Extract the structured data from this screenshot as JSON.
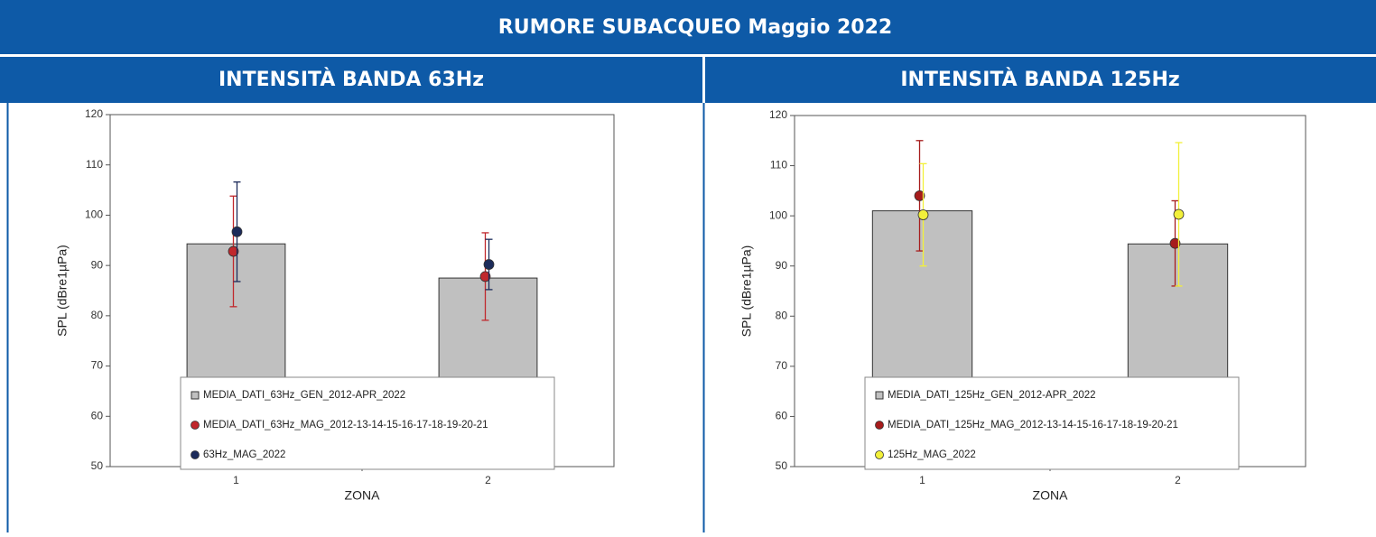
{
  "title": "RUMORE SUBACQUEO  Maggio 2022",
  "chart_data": [
    {
      "type": "bar",
      "title": "INTENSITÀ BANDA 63Hz",
      "x_label": "ZONA",
      "y_label": "SPL (dBre1µPa)",
      "categories": [
        "1",
        "2"
      ],
      "ylim": [
        50,
        120
      ],
      "yticks": [
        50,
        60,
        70,
        80,
        90,
        100,
        110,
        120
      ],
      "series": [
        {
          "name": "MEDIA_DATI_63Hz_GEN_2012-APR_2022",
          "type": "bar",
          "color": "#c0c0c0",
          "values": [
            94.3,
            87.5
          ]
        },
        {
          "name": "MEDIA_DATI_63Hz_MAG_2012-13-14-15-16-17-18-19-20-21",
          "type": "point",
          "color": "#c0282d",
          "values": [
            92.8,
            87.8
          ],
          "errors": [
            11,
            8.7
          ]
        },
        {
          "name": "63Hz_MAG_2022",
          "type": "point",
          "color": "#1c2b5a",
          "values": [
            96.7,
            90.2
          ],
          "errors": [
            9.9,
            5
          ]
        }
      ]
    },
    {
      "type": "bar",
      "title": "INTENSITÀ BANDA 125Hz",
      "x_label": "ZONA",
      "y_label": "SPL (dBre1µPa)",
      "categories": [
        "1",
        "2"
      ],
      "ylim": [
        50,
        120
      ],
      "yticks": [
        50,
        60,
        70,
        80,
        90,
        100,
        110,
        120
      ],
      "series": [
        {
          "name": "MEDIA_DATI_125Hz_GEN_2012-APR_2022",
          "type": "bar",
          "color": "#c0c0c0",
          "values": [
            101,
            94.4
          ]
        },
        {
          "name": "MEDIA_DATI_125Hz_MAG_2012-13-14-15-16-17-18-19-20-21",
          "type": "point",
          "color": "#a61c1c",
          "values": [
            104,
            94.5
          ],
          "errors": [
            11,
            8.5
          ]
        },
        {
          "name": "125Hz_MAG_2022",
          "type": "point",
          "color": "#f2f03a",
          "values": [
            100.2,
            100.3
          ],
          "errors": [
            10.2,
            14.3
          ]
        }
      ]
    }
  ]
}
